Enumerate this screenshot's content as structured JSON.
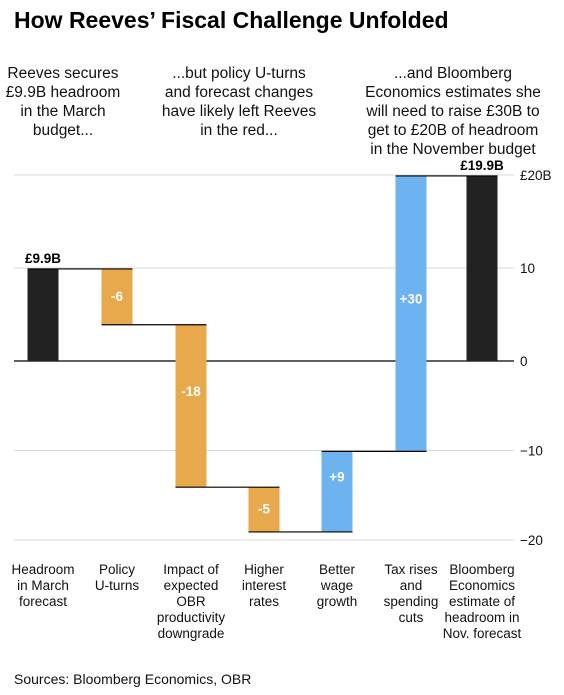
{
  "chart_data": {
    "type": "bar",
    "subtype": "waterfall",
    "title": "How Reeves’ Fiscal Challenge Unfolded",
    "annotations": [
      [
        "Reeves secures",
        "£9.9B headroom",
        "in the March",
        "budget..."
      ],
      [
        "...but policy U-turns",
        "and forecast changes",
        "have likely left Reeves",
        "in the red..."
      ],
      [
        "...and Bloomberg",
        "Economics estimates she",
        "will need to raise £30B to",
        "get to £20B of headroom",
        "in the November budget"
      ]
    ],
    "categories": [
      [
        "Headroom",
        "in March",
        "forecast"
      ],
      [
        "Policy",
        "U-turns"
      ],
      [
        "Impact of",
        "expected",
        "OBR",
        "productivity",
        "downgrade"
      ],
      [
        "Higher",
        "interest",
        "rates"
      ],
      [
        "Better",
        "wage",
        "growth"
      ],
      [
        "Tax rises",
        "and",
        "spending",
        "cuts"
      ],
      [
        "Bloomberg",
        "Economics",
        "estimate of",
        "headroom in",
        "Nov. forecast"
      ]
    ],
    "values": [
      9.9,
      -6,
      -18,
      -5,
      9,
      30,
      19.9
    ],
    "bar_kinds": [
      "total",
      "change",
      "change",
      "change",
      "change",
      "change",
      "total"
    ],
    "data_labels": [
      "£9.9B",
      "-6",
      "-18",
      "-5",
      "+9",
      "+30",
      "£19.9B"
    ],
    "yticks": [
      20,
      10,
      0,
      -10,
      -20
    ],
    "ytick_labels": [
      "£20B",
      "10",
      "0",
      "−10",
      "−20"
    ],
    "ylim": [
      -20,
      20
    ],
    "colors": {
      "total": "#222222",
      "decrease": "#e8a84c",
      "increase": "#6db3f0"
    },
    "source": "Sources: Bloomberg Economics, OBR"
  }
}
